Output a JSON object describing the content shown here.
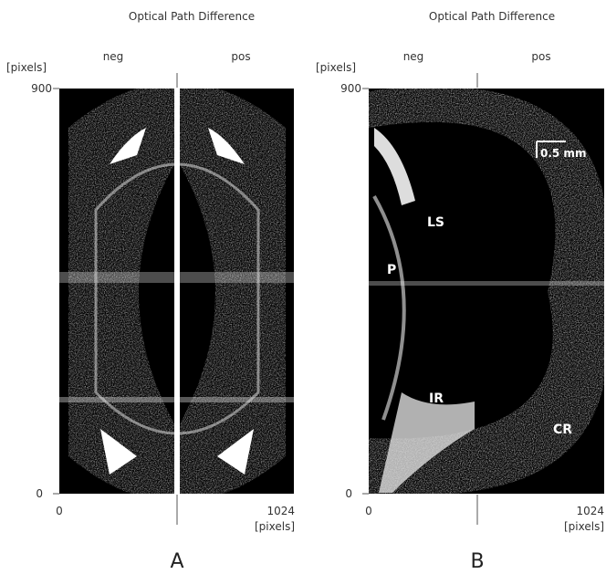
{
  "panels": [
    {
      "title": "Optical Path Difference",
      "y_unit": "[pixels]",
      "neg": "neg",
      "pos": "pos",
      "y_top": "900",
      "y_bottom": "0",
      "x_left": "0",
      "x_right": "1024",
      "x_unit": "[pixels]",
      "letter": "A"
    },
    {
      "title": "Optical Path Difference",
      "y_unit": "[pixels]",
      "neg": "neg",
      "pos": "pos",
      "y_top": "900",
      "y_bottom": "0",
      "x_left": "0",
      "x_right": "1024",
      "x_unit": "[pixels]",
      "letter": "B",
      "scale_bar": "0.5 mm",
      "labels": [
        "LS",
        "P",
        "IR",
        "CR"
      ]
    }
  ]
}
